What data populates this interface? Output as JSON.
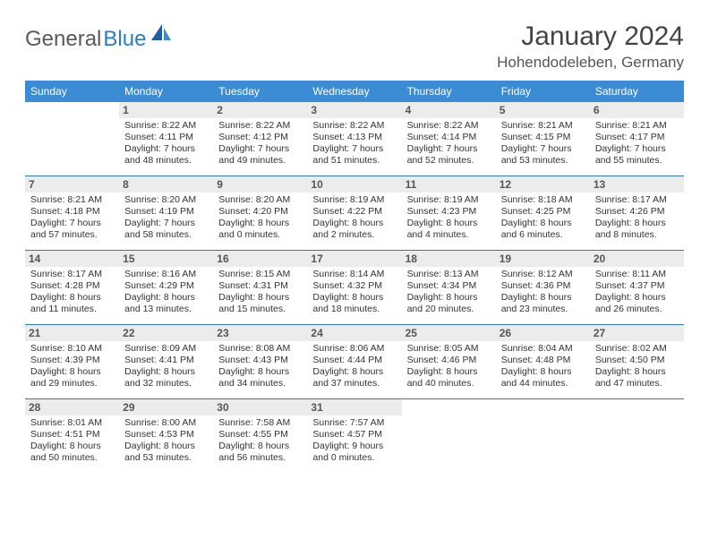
{
  "logo": {
    "part1": "General",
    "part2": "Blue"
  },
  "title": "January 2024",
  "location": "Hohendodeleben, Germany",
  "colors": {
    "header_bg": "#3b8cd4",
    "row_border": "#2a7cc7",
    "daynum_bg": "#ececec",
    "text": "#333333"
  },
  "dow": [
    "Sunday",
    "Monday",
    "Tuesday",
    "Wednesday",
    "Thursday",
    "Friday",
    "Saturday"
  ],
  "weeks": [
    [
      null,
      {
        "n": "1",
        "sr": "Sunrise: 8:22 AM",
        "ss": "Sunset: 4:11 PM",
        "d1": "Daylight: 7 hours",
        "d2": "and 48 minutes."
      },
      {
        "n": "2",
        "sr": "Sunrise: 8:22 AM",
        "ss": "Sunset: 4:12 PM",
        "d1": "Daylight: 7 hours",
        "d2": "and 49 minutes."
      },
      {
        "n": "3",
        "sr": "Sunrise: 8:22 AM",
        "ss": "Sunset: 4:13 PM",
        "d1": "Daylight: 7 hours",
        "d2": "and 51 minutes."
      },
      {
        "n": "4",
        "sr": "Sunrise: 8:22 AM",
        "ss": "Sunset: 4:14 PM",
        "d1": "Daylight: 7 hours",
        "d2": "and 52 minutes."
      },
      {
        "n": "5",
        "sr": "Sunrise: 8:21 AM",
        "ss": "Sunset: 4:15 PM",
        "d1": "Daylight: 7 hours",
        "d2": "and 53 minutes."
      },
      {
        "n": "6",
        "sr": "Sunrise: 8:21 AM",
        "ss": "Sunset: 4:17 PM",
        "d1": "Daylight: 7 hours",
        "d2": "and 55 minutes."
      }
    ],
    [
      {
        "n": "7",
        "sr": "Sunrise: 8:21 AM",
        "ss": "Sunset: 4:18 PM",
        "d1": "Daylight: 7 hours",
        "d2": "and 57 minutes."
      },
      {
        "n": "8",
        "sr": "Sunrise: 8:20 AM",
        "ss": "Sunset: 4:19 PM",
        "d1": "Daylight: 7 hours",
        "d2": "and 58 minutes."
      },
      {
        "n": "9",
        "sr": "Sunrise: 8:20 AM",
        "ss": "Sunset: 4:20 PM",
        "d1": "Daylight: 8 hours",
        "d2": "and 0 minutes."
      },
      {
        "n": "10",
        "sr": "Sunrise: 8:19 AM",
        "ss": "Sunset: 4:22 PM",
        "d1": "Daylight: 8 hours",
        "d2": "and 2 minutes."
      },
      {
        "n": "11",
        "sr": "Sunrise: 8:19 AM",
        "ss": "Sunset: 4:23 PM",
        "d1": "Daylight: 8 hours",
        "d2": "and 4 minutes."
      },
      {
        "n": "12",
        "sr": "Sunrise: 8:18 AM",
        "ss": "Sunset: 4:25 PM",
        "d1": "Daylight: 8 hours",
        "d2": "and 6 minutes."
      },
      {
        "n": "13",
        "sr": "Sunrise: 8:17 AM",
        "ss": "Sunset: 4:26 PM",
        "d1": "Daylight: 8 hours",
        "d2": "and 8 minutes."
      }
    ],
    [
      {
        "n": "14",
        "sr": "Sunrise: 8:17 AM",
        "ss": "Sunset: 4:28 PM",
        "d1": "Daylight: 8 hours",
        "d2": "and 11 minutes."
      },
      {
        "n": "15",
        "sr": "Sunrise: 8:16 AM",
        "ss": "Sunset: 4:29 PM",
        "d1": "Daylight: 8 hours",
        "d2": "and 13 minutes."
      },
      {
        "n": "16",
        "sr": "Sunrise: 8:15 AM",
        "ss": "Sunset: 4:31 PM",
        "d1": "Daylight: 8 hours",
        "d2": "and 15 minutes."
      },
      {
        "n": "17",
        "sr": "Sunrise: 8:14 AM",
        "ss": "Sunset: 4:32 PM",
        "d1": "Daylight: 8 hours",
        "d2": "and 18 minutes."
      },
      {
        "n": "18",
        "sr": "Sunrise: 8:13 AM",
        "ss": "Sunset: 4:34 PM",
        "d1": "Daylight: 8 hours",
        "d2": "and 20 minutes."
      },
      {
        "n": "19",
        "sr": "Sunrise: 8:12 AM",
        "ss": "Sunset: 4:36 PM",
        "d1": "Daylight: 8 hours",
        "d2": "and 23 minutes."
      },
      {
        "n": "20",
        "sr": "Sunrise: 8:11 AM",
        "ss": "Sunset: 4:37 PM",
        "d1": "Daylight: 8 hours",
        "d2": "and 26 minutes."
      }
    ],
    [
      {
        "n": "21",
        "sr": "Sunrise: 8:10 AM",
        "ss": "Sunset: 4:39 PM",
        "d1": "Daylight: 8 hours",
        "d2": "and 29 minutes."
      },
      {
        "n": "22",
        "sr": "Sunrise: 8:09 AM",
        "ss": "Sunset: 4:41 PM",
        "d1": "Daylight: 8 hours",
        "d2": "and 32 minutes."
      },
      {
        "n": "23",
        "sr": "Sunrise: 8:08 AM",
        "ss": "Sunset: 4:43 PM",
        "d1": "Daylight: 8 hours",
        "d2": "and 34 minutes."
      },
      {
        "n": "24",
        "sr": "Sunrise: 8:06 AM",
        "ss": "Sunset: 4:44 PM",
        "d1": "Daylight: 8 hours",
        "d2": "and 37 minutes."
      },
      {
        "n": "25",
        "sr": "Sunrise: 8:05 AM",
        "ss": "Sunset: 4:46 PM",
        "d1": "Daylight: 8 hours",
        "d2": "and 40 minutes."
      },
      {
        "n": "26",
        "sr": "Sunrise: 8:04 AM",
        "ss": "Sunset: 4:48 PM",
        "d1": "Daylight: 8 hours",
        "d2": "and 44 minutes."
      },
      {
        "n": "27",
        "sr": "Sunrise: 8:02 AM",
        "ss": "Sunset: 4:50 PM",
        "d1": "Daylight: 8 hours",
        "d2": "and 47 minutes."
      }
    ],
    [
      {
        "n": "28",
        "sr": "Sunrise: 8:01 AM",
        "ss": "Sunset: 4:51 PM",
        "d1": "Daylight: 8 hours",
        "d2": "and 50 minutes."
      },
      {
        "n": "29",
        "sr": "Sunrise: 8:00 AM",
        "ss": "Sunset: 4:53 PM",
        "d1": "Daylight: 8 hours",
        "d2": "and 53 minutes."
      },
      {
        "n": "30",
        "sr": "Sunrise: 7:58 AM",
        "ss": "Sunset: 4:55 PM",
        "d1": "Daylight: 8 hours",
        "d2": "and 56 minutes."
      },
      {
        "n": "31",
        "sr": "Sunrise: 7:57 AM",
        "ss": "Sunset: 4:57 PM",
        "d1": "Daylight: 9 hours",
        "d2": "and 0 minutes."
      },
      null,
      null,
      null
    ]
  ]
}
